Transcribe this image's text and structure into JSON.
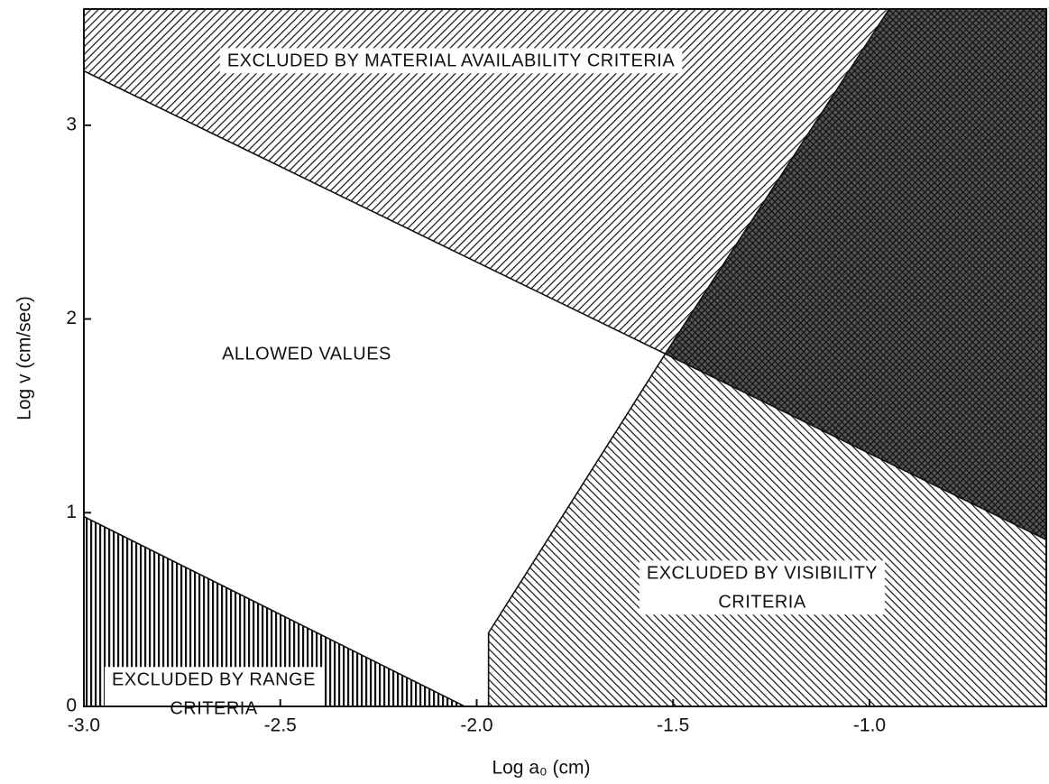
{
  "chart_data": {
    "type": "region",
    "xlabel": "Log a₀ (cm)",
    "ylabel": "Log v (cm/sec)",
    "xlim": [
      -3.0,
      -0.55
    ],
    "ylim": [
      0,
      3.6
    ],
    "xticks": [
      {
        "value": -3.0,
        "label": "-3.0"
      },
      {
        "value": -2.5,
        "label": "-2.5"
      },
      {
        "value": -2.0,
        "label": "-2.0"
      },
      {
        "value": -1.5,
        "label": "-1.5"
      },
      {
        "value": -1.0,
        "label": "-1.0"
      }
    ],
    "yticks": [
      0,
      1,
      2,
      3
    ],
    "regions": [
      {
        "label": [
          "EXCLUDED BY MATERIAL AVAILABILITY CRITERIA"
        ],
        "pattern": "diagonal-up",
        "x": [
          -3.0,
          -1.52,
          -0.95,
          -3.0
        ],
        "y": [
          3.28,
          1.82,
          3.6,
          3.6
        ]
      },
      {
        "pattern": "crosshatch",
        "x": [
          -0.95,
          -1.52,
          -0.55,
          -0.55
        ],
        "y": [
          3.6,
          1.82,
          0.86,
          3.6
        ]
      },
      {
        "label": [
          "EXCLUDED BY VISIBILITY",
          "CRITERIA"
        ],
        "pattern": "diagonal-down",
        "x": [
          -1.52,
          -0.55,
          -0.55,
          -1.97,
          -1.97
        ],
        "y": [
          1.82,
          0.86,
          0,
          0,
          0.38
        ]
      },
      {
        "label": [
          "EXCLUDED BY RANGE",
          "CRITERIA"
        ],
        "pattern": "vertical",
        "x": [
          -3.0,
          -2.03,
          -3.0
        ],
        "y": [
          0.98,
          0,
          0
        ]
      },
      {
        "label": [
          "ALLOWED VALUES"
        ],
        "pattern": "none",
        "x": [
          -3.0,
          -1.52,
          -1.97,
          -1.97,
          -2.03,
          -3.0
        ],
        "y": [
          3.28,
          1.82,
          0.38,
          0,
          0,
          0.98
        ]
      }
    ]
  }
}
